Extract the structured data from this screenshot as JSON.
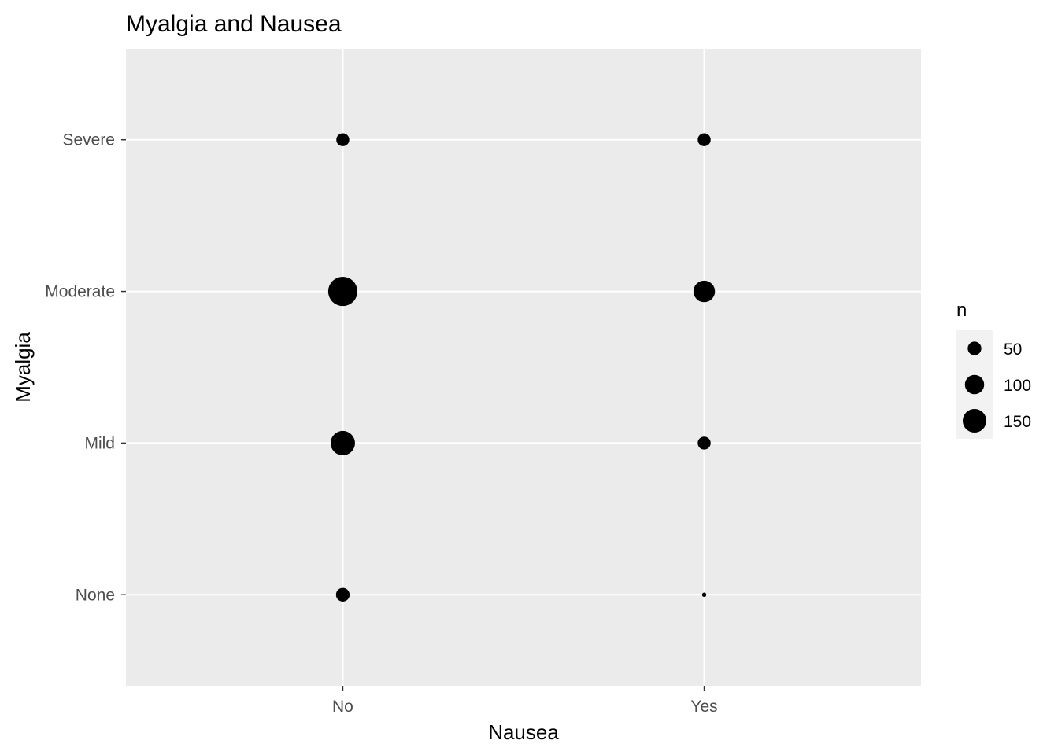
{
  "chart_data": {
    "type": "scatter",
    "title": "Myalgia and Nausea",
    "xlabel": "Nausea",
    "ylabel": "Myalgia",
    "x_categories": [
      "No",
      "Yes"
    ],
    "y_categories": [
      "None",
      "Mild",
      "Moderate",
      "Severe"
    ],
    "points": [
      {
        "x": "No",
        "y": "None",
        "n": 50
      },
      {
        "x": "No",
        "y": "Mild",
        "n": 160
      },
      {
        "x": "No",
        "y": "Moderate",
        "n": 230
      },
      {
        "x": "No",
        "y": "Severe",
        "n": 45
      },
      {
        "x": "Yes",
        "y": "None",
        "n": 5
      },
      {
        "x": "Yes",
        "y": "Mild",
        "n": 45
      },
      {
        "x": "Yes",
        "y": "Moderate",
        "n": 125
      },
      {
        "x": "Yes",
        "y": "Severe",
        "n": 45
      }
    ],
    "size_legend": {
      "title": "n",
      "breaks": [
        50,
        100,
        150
      ],
      "labels": [
        "50",
        "100",
        "150"
      ]
    },
    "legend_position": "right",
    "grid": true,
    "colors": {
      "panel_background": "#ebebeb",
      "grid": "#ffffff",
      "point": "#000000",
      "tick_text": "#4d4d4d",
      "tick_mark": "#333333"
    }
  }
}
